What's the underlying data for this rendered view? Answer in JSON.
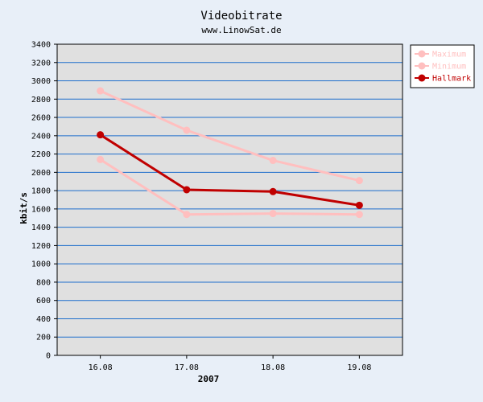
{
  "chart_data": {
    "type": "line",
    "title": "Videobitrate",
    "subtitle": "www.LinowSat.de",
    "xlabel": "2007",
    "ylabel": "kbit/s",
    "categories": [
      "16.08",
      "17.08",
      "18.08",
      "19.08"
    ],
    "ylim": [
      0,
      3400
    ],
    "ytick_step": 200,
    "grid": true,
    "legend_position": "top-right",
    "series": [
      {
        "name": "Maximum",
        "color": "#ffbfbf",
        "values": [
          2890,
          2460,
          2130,
          1910
        ]
      },
      {
        "name": "Minimum",
        "color": "#ffbfbf",
        "values": [
          2140,
          1540,
          1550,
          1540
        ]
      },
      {
        "name": "Hallmark",
        "color": "#c00000",
        "values": [
          2410,
          1810,
          1790,
          1640
        ]
      }
    ],
    "colors": {
      "page_background": "#e8eff8",
      "plot_background": "#e0e0e0",
      "grid": "#1e6ecc",
      "axis": "#000000"
    }
  }
}
